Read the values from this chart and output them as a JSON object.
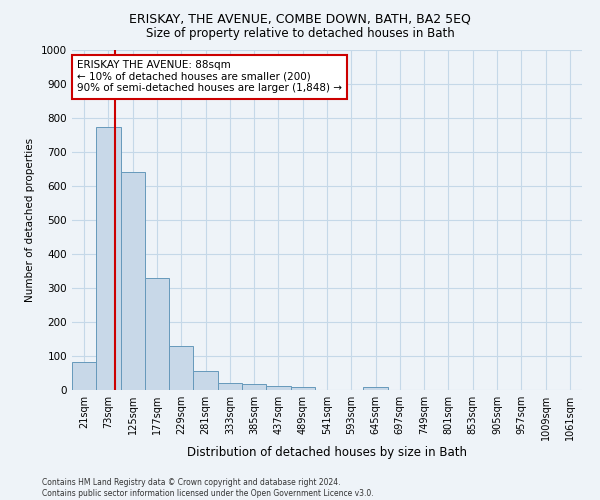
{
  "title": "ERISKAY, THE AVENUE, COMBE DOWN, BATH, BA2 5EQ",
  "subtitle": "Size of property relative to detached houses in Bath",
  "xlabel": "Distribution of detached houses by size in Bath",
  "ylabel": "Number of detached properties",
  "footnote": "Contains HM Land Registry data © Crown copyright and database right 2024.\nContains public sector information licensed under the Open Government Licence v3.0.",
  "categories": [
    "21sqm",
    "73sqm",
    "125sqm",
    "177sqm",
    "229sqm",
    "281sqm",
    "333sqm",
    "385sqm",
    "437sqm",
    "489sqm",
    "541sqm",
    "593sqm",
    "645sqm",
    "697sqm",
    "749sqm",
    "801sqm",
    "853sqm",
    "905sqm",
    "957sqm",
    "1009sqm",
    "1061sqm"
  ],
  "values": [
    82,
    775,
    640,
    330,
    130,
    55,
    22,
    18,
    12,
    8,
    0,
    0,
    10,
    0,
    0,
    0,
    0,
    0,
    0,
    0,
    0
  ],
  "bar_color": "#c8d8e8",
  "bar_edge_color": "#6699bb",
  "property_line_color": "#cc0000",
  "annotation_text": "ERISKAY THE AVENUE: 88sqm\n← 10% of detached houses are smaller (200)\n90% of semi-detached houses are larger (1,848) →",
  "annotation_box_color": "#ffffff",
  "annotation_box_edge": "#cc0000",
  "ylim": [
    0,
    1000
  ],
  "background_color": "#eef3f8",
  "grid_color": "#c5d8e8",
  "title_fontsize": 9,
  "subtitle_fontsize": 8.5
}
